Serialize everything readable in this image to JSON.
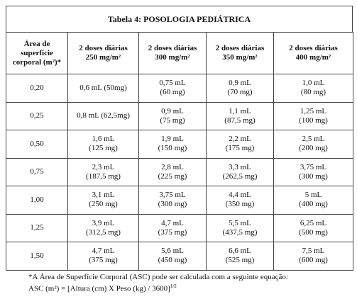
{
  "title": "Tabela 4: POSOLOGIA PEDIÁTRICA",
  "table": {
    "header": [
      [
        "Área de",
        "superfície",
        "corporal (m²)*"
      ],
      [
        "2 doses diárias",
        "250 mg/m²"
      ],
      [
        "2 doses diárias",
        "300 mg/m²"
      ],
      [
        "2 doses diárias",
        "350 mg/m²"
      ],
      [
        "2 doses diárias",
        "400 mg/m²"
      ]
    ],
    "rows": [
      [
        [
          "0,20"
        ],
        [
          "0,6 mL (50mg)"
        ],
        [
          "0,75 mL",
          "(60 mg)"
        ],
        [
          "0,9 mL",
          "(70 mg)"
        ],
        [
          "1,0 mL",
          "(80 mg)"
        ]
      ],
      [
        [
          "0,25"
        ],
        [
          "0,8 mL (62,5mg)"
        ],
        [
          "0,9 mL",
          "(75 mg)"
        ],
        [
          "1,1 mL",
          "(87,5 mg)"
        ],
        [
          "1,25 mL",
          "(100 mg)"
        ]
      ],
      [
        [
          "0,50"
        ],
        [
          "1,6 mL",
          "(125 mg)"
        ],
        [
          "1,9 mL",
          "(150 mg)"
        ],
        [
          "2,2 mL",
          "(175 mg)"
        ],
        [
          "2,5 mL",
          "(200 mg)"
        ]
      ],
      [
        [
          "0,75"
        ],
        [
          "2,3 mL",
          "(187,5 mg)"
        ],
        [
          "2,8 mL",
          "(225 mg)"
        ],
        [
          "3,3 mL",
          "(262,5 mg)"
        ],
        [
          "3,75 mL",
          "(300 mg)"
        ]
      ],
      [
        [
          "1,00"
        ],
        [
          "3,1 mL",
          "(250 mg)"
        ],
        [
          "3,75 mL",
          "(300 mg)"
        ],
        [
          "4,4 mL",
          "(350 mg)"
        ],
        [
          "5 mL",
          "(400 mg)"
        ]
      ],
      [
        [
          "1,25"
        ],
        [
          "3,9 mL",
          "(312,5 mg)"
        ],
        [
          "4,7 mL",
          "(375 mg)"
        ],
        [
          "5,5 mL",
          "(437,5 mg)"
        ],
        [
          "6,25 mL",
          "(500 mg)"
        ]
      ],
      [
        [
          "1,50"
        ],
        [
          "4,7 mL",
          "(375 mg)"
        ],
        [
          "5,6 mL",
          "(450 mg)"
        ],
        [
          "6,6 mL",
          "(525 mg)"
        ],
        [
          "7,5 mL",
          "(600 mg)"
        ]
      ]
    ]
  },
  "footnote": {
    "line1": "*A Área de Superfície Corporal (ASC) pode ser calculada com a seguinte equação:",
    "line2": "ASC (m²) = [Altura (cm) X Peso (kg) / 3600]",
    "exponent": "1/2"
  }
}
